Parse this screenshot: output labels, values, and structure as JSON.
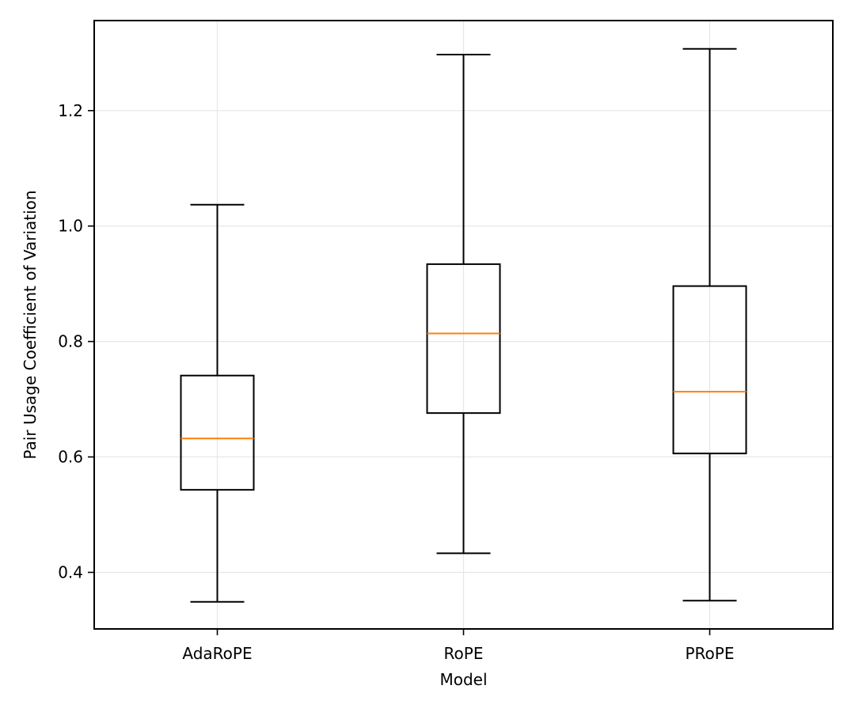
{
  "chart_data": {
    "type": "boxplot",
    "title": "",
    "xlabel": "Model",
    "ylabel": "Pair Usage Coefficient of Variation",
    "ylim": [
      0.302,
      1.356
    ],
    "yticks": [
      0.4,
      0.6,
      0.8,
      1.0,
      1.2
    ],
    "ytick_labels": [
      "0.4",
      "0.6",
      "0.8",
      "1.0",
      "1.2"
    ],
    "grid": true,
    "categories": [
      "AdaRoPE",
      "RoPE",
      "PRoPE"
    ],
    "boxes": [
      {
        "name": "AdaRoPE",
        "whisker_low": 0.349,
        "q1": 0.543,
        "median": 0.632,
        "q3": 0.741,
        "whisker_high": 1.037
      },
      {
        "name": "RoPE",
        "whisker_low": 0.433,
        "q1": 0.676,
        "median": 0.814,
        "q3": 0.934,
        "whisker_high": 1.297
      },
      {
        "name": "PRoPE",
        "whisker_low": 0.351,
        "q1": 0.606,
        "median": 0.713,
        "q3": 0.896,
        "whisker_high": 1.307
      }
    ],
    "colors": {
      "box": "#000000",
      "median": "#ff7f0e",
      "grid": "#e6e6e6"
    }
  }
}
